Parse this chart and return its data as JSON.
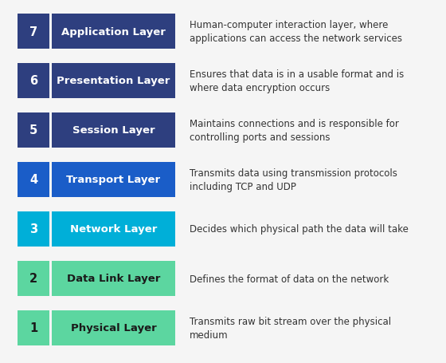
{
  "layers": [
    {
      "number": "7",
      "name": "Application Layer",
      "description": "Human-computer interaction layer, where\napplications can access the network services",
      "num_color": "#2e3f7f",
      "box_color": "#2e3f7f",
      "text_color": "#ffffff",
      "desc_color": "#333333"
    },
    {
      "number": "6",
      "name": "Presentation Layer",
      "description": "Ensures that data is in a usable format and is\nwhere data encryption occurs",
      "num_color": "#2e3f7f",
      "box_color": "#2e3f7f",
      "text_color": "#ffffff",
      "desc_color": "#333333"
    },
    {
      "number": "5",
      "name": "Session Layer",
      "description": "Maintains connections and is responsible for\ncontrolling ports and sessions",
      "num_color": "#2e3f7f",
      "box_color": "#2e3f7f",
      "text_color": "#ffffff",
      "desc_color": "#333333"
    },
    {
      "number": "4",
      "name": "Transport Layer",
      "description": "Transmits data using transmission protocols\nincluding TCP and UDP",
      "num_color": "#1a5dc8",
      "box_color": "#1a5dc8",
      "text_color": "#ffffff",
      "desc_color": "#333333"
    },
    {
      "number": "3",
      "name": "Network Layer",
      "description": "Decides which physical path the data will take",
      "num_color": "#00afd8",
      "box_color": "#00afd8",
      "text_color": "#ffffff",
      "desc_color": "#333333"
    },
    {
      "number": "2",
      "name": "Data Link Layer",
      "description": "Defines the format of data on the network",
      "num_color": "#5cd6a0",
      "box_color": "#5cd6a0",
      "text_color": "#1a1a1a",
      "desc_color": "#333333"
    },
    {
      "number": "1",
      "name": "Physical Layer",
      "description": "Transmits raw bit stream over the physical\nmedium",
      "num_color": "#5cd6a0",
      "box_color": "#5cd6a0",
      "text_color": "#1a1a1a",
      "desc_color": "#333333"
    }
  ],
  "background_color": "#f5f5f5",
  "fig_width": 5.6,
  "fig_height": 4.56,
  "dpi": 100
}
